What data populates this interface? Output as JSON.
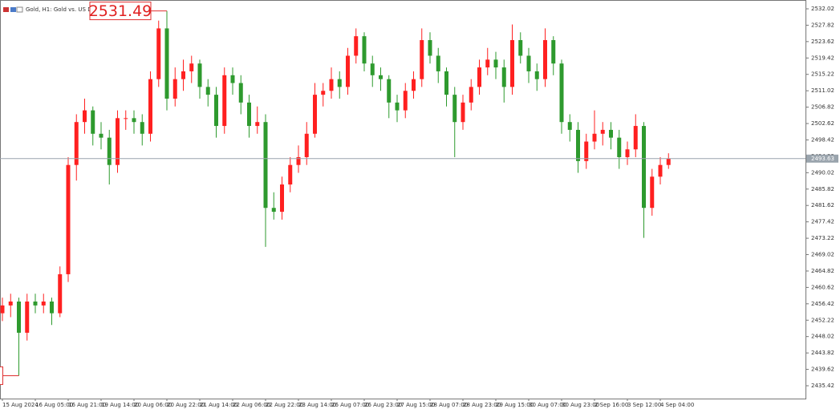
{
  "chart_data": {
    "type": "candlestick",
    "title": "Gold, H1:  Gold vs. US Dollar",
    "categories": [
      "15 Aug 2024",
      null,
      null,
      null,
      "16 Aug 05:00",
      null,
      null,
      null,
      "16 Aug 21:00",
      null,
      null,
      null,
      "19 Aug 14:00",
      null,
      null,
      null,
      "20 Aug 06:00",
      null,
      null,
      null,
      "20 Aug 22:00",
      null,
      null,
      null,
      "21 Aug 14:00",
      null,
      null,
      null,
      "22 Aug 06:00",
      null,
      null,
      null,
      "22 Aug 22:00",
      null,
      null,
      null,
      "23 Aug 14:00",
      null,
      null,
      null,
      "26 Aug 07:00",
      null,
      null,
      null,
      "26 Aug 23:00",
      null,
      null,
      null,
      "27 Aug 15:00",
      null,
      null,
      null,
      "28 Aug 07:00",
      null,
      null,
      null,
      "28 Aug 23:00",
      null,
      null,
      null,
      "29 Aug 15:00",
      null,
      null,
      null,
      "30 Aug 07:00",
      null,
      null,
      null,
      "30 Aug 23:00",
      null,
      null,
      null,
      "2 Sep 16:00",
      null,
      null,
      null,
      "3 Sep 12:00",
      null,
      null,
      null,
      "4 Sep 04:00",
      null
    ],
    "ohlc": [
      [
        2454,
        2458,
        2452,
        2456
      ],
      [
        2456,
        2459,
        2453,
        2457
      ],
      [
        2457,
        2458,
        2438,
        2449
      ],
      [
        2449,
        2459,
        2447,
        2457
      ],
      [
        2457,
        2459,
        2454,
        2456
      ],
      [
        2456,
        2459,
        2454,
        2457
      ],
      [
        2457,
        2458,
        2451,
        2454
      ],
      [
        2454,
        2466,
        2453,
        2464
      ],
      [
        2464,
        2494,
        2462,
        2492
      ],
      [
        2492,
        2505,
        2488,
        2503
      ],
      [
        2503,
        2509,
        2500,
        2506
      ],
      [
        2506,
        2507,
        2497,
        2500
      ],
      [
        2500,
        2503,
        2496,
        2499
      ],
      [
        2499,
        2501,
        2487,
        2492
      ],
      [
        2492,
        2506,
        2490,
        2504
      ],
      [
        2504,
        2506,
        2501,
        2504
      ],
      [
        2504,
        2506,
        2500,
        2503
      ],
      [
        2503,
        2505,
        2497,
        2500
      ],
      [
        2500,
        2516,
        2498,
        2514
      ],
      [
        2514,
        2529,
        2512,
        2527
      ],
      [
        2527,
        2531.49,
        2506,
        2509
      ],
      [
        2509,
        2517,
        2507,
        2514
      ],
      [
        2514,
        2519,
        2511,
        2516
      ],
      [
        2516,
        2520,
        2513,
        2518
      ],
      [
        2518,
        2519,
        2509,
        2512
      ],
      [
        2512,
        2514,
        2507,
        2510
      ],
      [
        2510,
        2512,
        2499,
        2502
      ],
      [
        2502,
        2517,
        2500,
        2515
      ],
      [
        2515,
        2517,
        2510,
        2513
      ],
      [
        2513,
        2515,
        2505,
        2508
      ],
      [
        2508,
        2510,
        2499,
        2502
      ],
      [
        2502,
        2507,
        2500,
        2503
      ],
      [
        2503,
        2505,
        2471,
        2481
      ],
      [
        2481,
        2485,
        2478,
        2480
      ],
      [
        2480,
        2489,
        2478,
        2487
      ],
      [
        2487,
        2494,
        2485,
        2492
      ],
      [
        2492,
        2497,
        2490,
        2494
      ],
      [
        2494,
        2503,
        2492,
        2500
      ],
      [
        2500,
        2513,
        2499,
        2510
      ],
      [
        2510,
        2513,
        2507,
        2511
      ],
      [
        2511,
        2517,
        2509,
        2514
      ],
      [
        2514,
        2516,
        2509,
        2512
      ],
      [
        2512,
        2522,
        2510,
        2520
      ],
      [
        2520,
        2527,
        2518,
        2525
      ],
      [
        2525,
        2526,
        2516,
        2518
      ],
      [
        2518,
        2520,
        2512,
        2515
      ],
      [
        2515,
        2517,
        2511,
        2514
      ],
      [
        2514,
        2515,
        2504,
        2508
      ],
      [
        2508,
        2510,
        2503,
        2506
      ],
      [
        2506,
        2513,
        2504,
        2511
      ],
      [
        2511,
        2516,
        2509,
        2514
      ],
      [
        2514,
        2527,
        2512,
        2524
      ],
      [
        2524,
        2526,
        2518,
        2520
      ],
      [
        2520,
        2522,
        2513,
        2516
      ],
      [
        2516,
        2517,
        2507,
        2510
      ],
      [
        2510,
        2512,
        2494,
        2503
      ],
      [
        2503,
        2510,
        2501,
        2508
      ],
      [
        2508,
        2514,
        2506,
        2512
      ],
      [
        2512,
        2519,
        2510,
        2517
      ],
      [
        2517,
        2522,
        2515,
        2519
      ],
      [
        2519,
        2521,
        2514,
        2517
      ],
      [
        2517,
        2519,
        2508,
        2512
      ],
      [
        2512,
        2528,
        2510,
        2524
      ],
      [
        2524,
        2526,
        2518,
        2520
      ],
      [
        2520,
        2522,
        2513,
        2516
      ],
      [
        2516,
        2518,
        2511,
        2514
      ],
      [
        2514,
        2527,
        2512,
        2524
      ],
      [
        2524,
        2525,
        2515,
        2518
      ],
      [
        2518,
        2519,
        2500,
        2503
      ],
      [
        2503,
        2505,
        2498,
        2501
      ],
      [
        2501,
        2503,
        2490,
        2493
      ],
      [
        2493,
        2500,
        2491,
        2498
      ],
      [
        2498,
        2506,
        2496,
        2500
      ],
      [
        2500,
        2503,
        2497,
        2501
      ],
      [
        2501,
        2503,
        2496,
        2499
      ],
      [
        2499,
        2501,
        2491,
        2494
      ],
      [
        2494,
        2498,
        2492,
        2496
      ],
      [
        2496,
        2505,
        2494,
        2502
      ],
      [
        2502,
        2503,
        2473.31,
        2481
      ],
      [
        2481,
        2491,
        2479,
        2489
      ],
      [
        2489,
        2494,
        2487,
        2492
      ],
      [
        2492,
        2495,
        2491,
        2493.63
      ]
    ],
    "up_color": "#ff2020",
    "down_color": "#2e9a2e",
    "ylim": [
      2432.13,
      2534.28
    ],
    "yticks": [
      2532.02,
      2527.82,
      2523.62,
      2519.42,
      2515.22,
      2511.02,
      2506.82,
      2502.62,
      2498.42,
      2494.22,
      2490.02,
      2485.82,
      2481.62,
      2477.42,
      2473.22,
      2469.02,
      2464.82,
      2460.62,
      2456.42,
      2452.22,
      2448.02,
      2443.82,
      2439.62,
      2435.42
    ],
    "grid": false
  }
}
